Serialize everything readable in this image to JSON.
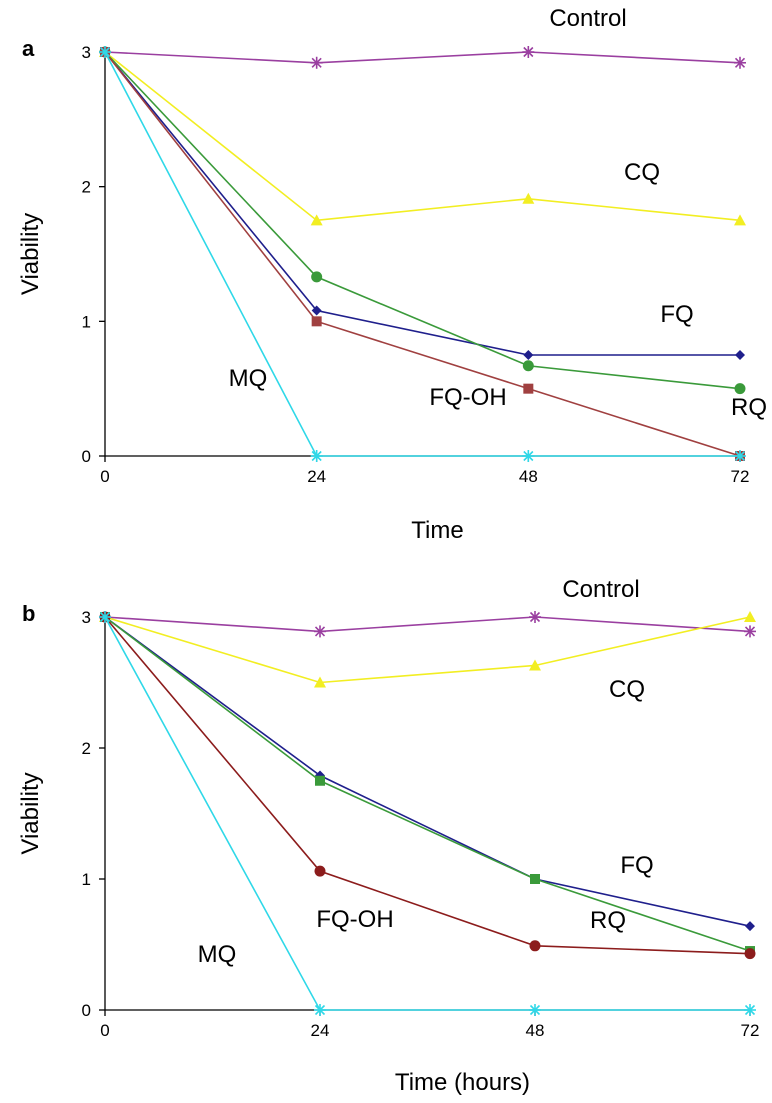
{
  "chart_data": [
    {
      "type": "line",
      "panel_label": "a",
      "x": [
        0,
        24,
        48,
        72
      ],
      "xlabel": "Time",
      "ylabel": "Viability",
      "xlim": [
        0,
        72
      ],
      "ylim": [
        0,
        3
      ],
      "x_ticks": [
        "0",
        "24",
        "48",
        "72"
      ],
      "y_ticks": [
        "0",
        "1",
        "2",
        "3"
      ],
      "grid": false,
      "series": [
        {
          "name": "Control",
          "values": [
            3,
            2.92,
            3,
            2.92
          ],
          "color": "#9a3fa0",
          "marker": "star"
        },
        {
          "name": "CQ",
          "values": [
            3,
            1.75,
            1.91,
            1.75
          ],
          "color": "#f2ee22",
          "marker": "triangle"
        },
        {
          "name": "FQ",
          "values": [
            3,
            1.08,
            0.75,
            0.75
          ],
          "color": "#1f1f8c",
          "marker": "diamond"
        },
        {
          "name": "RQ",
          "values": [
            3,
            1.33,
            0.67,
            0.5
          ],
          "color": "#3a9a3a",
          "marker": "circle"
        },
        {
          "name": "FQ-OH",
          "values": [
            3,
            1,
            0.5,
            0
          ],
          "color": "#a04040",
          "marker": "square"
        },
        {
          "name": "MQ",
          "values": [
            3,
            0,
            0,
            0
          ],
          "color": "#2fd8e8",
          "marker": "star"
        }
      ]
    },
    {
      "type": "line",
      "panel_label": "b",
      "x": [
        0,
        24,
        48,
        72
      ],
      "xlabel": "Time (hours)",
      "ylabel": "Viability",
      "xlim": [
        0,
        72
      ],
      "ylim": [
        0,
        3
      ],
      "x_ticks": [
        "0",
        "24",
        "48",
        "72"
      ],
      "y_ticks": [
        "0",
        "1",
        "2",
        "3"
      ],
      "grid": false,
      "series": [
        {
          "name": "Control",
          "values": [
            3,
            2.89,
            3,
            2.89
          ],
          "color": "#9a3fa0",
          "marker": "star"
        },
        {
          "name": "CQ",
          "values": [
            3,
            2.5,
            2.63,
            3
          ],
          "color": "#f2ee22",
          "marker": "triangle"
        },
        {
          "name": "FQ",
          "values": [
            3,
            1.79,
            1,
            0.64
          ],
          "color": "#1f1f8c",
          "marker": "diamond"
        },
        {
          "name": "RQ",
          "values": [
            3,
            1.75,
            1,
            0.45
          ],
          "color": "#3a9a3a",
          "marker": "square"
        },
        {
          "name": "FQ-OH",
          "values": [
            3,
            1.06,
            0.49,
            0.43
          ],
          "color": "#8c1c1c",
          "marker": "circle"
        },
        {
          "name": "MQ",
          "values": [
            3,
            0,
            0,
            0
          ],
          "color": "#2fd8e8",
          "marker": "star"
        }
      ]
    }
  ]
}
